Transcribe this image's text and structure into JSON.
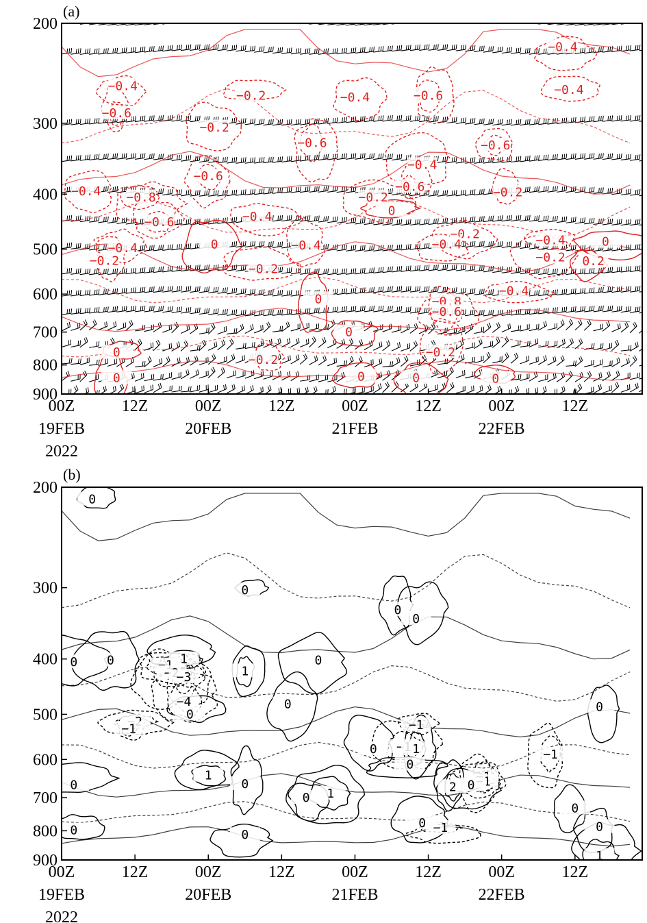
{
  "chart_data": [
    {
      "type": "line",
      "panel_label": "(a)",
      "y_ticks": [
        "200",
        "300",
        "400",
        "500",
        "600",
        "700",
        "800",
        "900"
      ],
      "y_values": [
        200,
        300,
        400,
        500,
        600,
        700,
        800,
        900
      ],
      "ylim": [
        900,
        200
      ],
      "y_scale": "log",
      "x_ticks": [
        "00Z",
        "12Z",
        "00Z",
        "12Z",
        "00Z",
        "12Z",
        "00Z",
        "12Z"
      ],
      "x_hours": [
        0,
        12,
        24,
        36,
        48,
        60,
        72,
        84
      ],
      "xlim_hours": [
        0,
        95
      ],
      "date_labels": [
        "19FEB",
        "20FEB",
        "21FEB",
        "22FEB"
      ],
      "year_label": "2022",
      "contour_color": "#e02020",
      "barb_color": "#000000",
      "contour_labels": [
        {
          "text": "-0.4",
          "t": 82,
          "p": 220
        },
        {
          "text": "-0.4",
          "t": 10,
          "p": 258
        },
        {
          "text": "-0.2",
          "t": 31,
          "p": 268
        },
        {
          "text": "-0.4",
          "t": 48,
          "p": 270
        },
        {
          "text": "-0.6",
          "t": 60,
          "p": 268
        },
        {
          "text": "-0.4",
          "t": 83,
          "p": 262
        },
        {
          "text": "-0.6",
          "t": 9,
          "p": 288
        },
        {
          "text": "-0.2",
          "t": 25,
          "p": 305
        },
        {
          "text": "-0.6",
          "t": 41,
          "p": 325
        },
        {
          "text": "-0.6",
          "t": 71,
          "p": 328
        },
        {
          "text": "-0.4",
          "t": 59,
          "p": 355
        },
        {
          "text": "-0.6",
          "t": 24,
          "p": 372
        },
        {
          "text": "-0.6",
          "t": 57,
          "p": 388
        },
        {
          "text": "-0.4",
          "t": 4,
          "p": 395
        },
        {
          "text": "-0.8",
          "t": 13,
          "p": 405
        },
        {
          "text": "-0.2",
          "t": 51,
          "p": 405
        },
        {
          "text": "-0.2",
          "t": 73,
          "p": 397
        },
        {
          "text": "0",
          "t": 54,
          "p": 428
        },
        {
          "text": "-0.4",
          "t": 32,
          "p": 438
        },
        {
          "text": "-0.6",
          "t": 16,
          "p": 448
        },
        {
          "text": "-0.2",
          "t": 66,
          "p": 470
        },
        {
          "text": "-0.4",
          "t": 80,
          "p": 482
        },
        {
          "text": "0",
          "t": 89,
          "p": 485
        },
        {
          "text": "-0.4",
          "t": 40,
          "p": 492
        },
        {
          "text": "-0.4",
          "t": 63,
          "p": 490
        },
        {
          "text": "-0.4",
          "t": 10,
          "p": 498
        },
        {
          "text": "0",
          "t": 25,
          "p": 490
        },
        {
          "text": "-0.2",
          "t": 80,
          "p": 517
        },
        {
          "text": "0.2",
          "t": 87,
          "p": 525
        },
        {
          "text": "-0.2",
          "t": 7,
          "p": 524
        },
        {
          "text": "-0.2",
          "t": 33,
          "p": 542
        },
        {
          "text": "-0.4",
          "t": 74,
          "p": 592
        },
        {
          "text": "0",
          "t": 42,
          "p": 612
        },
        {
          "text": "-0.8",
          "t": 63,
          "p": 618
        },
        {
          "text": "-0.6",
          "t": 63,
          "p": 645
        },
        {
          "text": "0",
          "t": 47,
          "p": 700
        },
        {
          "text": "0",
          "t": 9,
          "p": 760
        },
        {
          "text": "-0.2",
          "t": 33,
          "p": 783
        },
        {
          "text": "-0.2",
          "t": 62,
          "p": 760
        },
        {
          "text": "0",
          "t": 49,
          "p": 838
        },
        {
          "text": "0",
          "t": 58,
          "p": 843
        },
        {
          "text": "0",
          "t": 71,
          "p": 845
        },
        {
          "text": "0",
          "t": 9,
          "p": 843
        }
      ]
    },
    {
      "type": "line",
      "panel_label": "(b)",
      "y_ticks": [
        "200",
        "300",
        "400",
        "500",
        "600",
        "700",
        "800",
        "900"
      ],
      "y_values": [
        200,
        300,
        400,
        500,
        600,
        700,
        800,
        900
      ],
      "ylim": [
        900,
        200
      ],
      "y_scale": "log",
      "x_ticks": [
        "00Z",
        "12Z",
        "00Z",
        "12Z",
        "00Z",
        "12Z",
        "00Z",
        "12Z"
      ],
      "x_hours": [
        0,
        12,
        24,
        36,
        48,
        60,
        72,
        84
      ],
      "xlim_hours": [
        0,
        95
      ],
      "date_labels": [
        "19FEB",
        "20FEB",
        "21FEB",
        "22FEB"
      ],
      "year_label": "2022",
      "contour_color": "#000000",
      "contour_labels": [
        {
          "text": "0",
          "t": 5,
          "p": 210
        },
        {
          "text": "0",
          "t": 30,
          "p": 303
        },
        {
          "text": "0",
          "t": 55,
          "p": 328
        },
        {
          "text": "0",
          "t": 58,
          "p": 340
        },
        {
          "text": "0",
          "t": 2,
          "p": 405
        },
        {
          "text": "0",
          "t": 8,
          "p": 402
        },
        {
          "text": "0",
          "t": 42,
          "p": 402
        },
        {
          "text": "1",
          "t": 20,
          "p": 400
        },
        {
          "text": "-1",
          "t": 17,
          "p": 410
        },
        {
          "text": "-2",
          "t": 18,
          "p": 423
        },
        {
          "text": "-3",
          "t": 20,
          "p": 430
        },
        {
          "text": "1",
          "t": 30,
          "p": 420
        },
        {
          "text": "-4",
          "t": 20,
          "p": 475
        },
        {
          "text": "0",
          "t": 37,
          "p": 480
        },
        {
          "text": "0",
          "t": 21,
          "p": 500
        },
        {
          "text": "0",
          "t": 88,
          "p": 485
        },
        {
          "text": "-2",
          "t": 12,
          "p": 515
        },
        {
          "text": "-1",
          "t": 11,
          "p": 530
        },
        {
          "text": "-1",
          "t": 58,
          "p": 522
        },
        {
          "text": "-1",
          "t": 56,
          "p": 570
        },
        {
          "text": "0",
          "t": 51,
          "p": 575
        },
        {
          "text": "1",
          "t": 58,
          "p": 575
        },
        {
          "text": "-1",
          "t": 80,
          "p": 588
        },
        {
          "text": "0",
          "t": 57,
          "p": 612
        },
        {
          "text": "1",
          "t": 24,
          "p": 640
        },
        {
          "text": "0",
          "t": 30,
          "p": 662
        },
        {
          "text": "-1",
          "t": 69,
          "p": 643
        },
        {
          "text": "-1",
          "t": 69,
          "p": 656
        },
        {
          "text": "0",
          "t": 2,
          "p": 665
        },
        {
          "text": "1",
          "t": 44,
          "p": 688
        },
        {
          "text": "2",
          "t": 64,
          "p": 670
        },
        {
          "text": "0",
          "t": 67,
          "p": 665
        },
        {
          "text": "0",
          "t": 40,
          "p": 700
        },
        {
          "text": "0",
          "t": 84,
          "p": 730
        },
        {
          "text": "0",
          "t": 59,
          "p": 775
        },
        {
          "text": "-1",
          "t": 62,
          "p": 790
        },
        {
          "text": "0",
          "t": 2,
          "p": 798
        },
        {
          "text": "0",
          "t": 30,
          "p": 813
        },
        {
          "text": "0",
          "t": 88,
          "p": 787
        },
        {
          "text": "1",
          "t": 88,
          "p": 885
        }
      ]
    }
  ]
}
